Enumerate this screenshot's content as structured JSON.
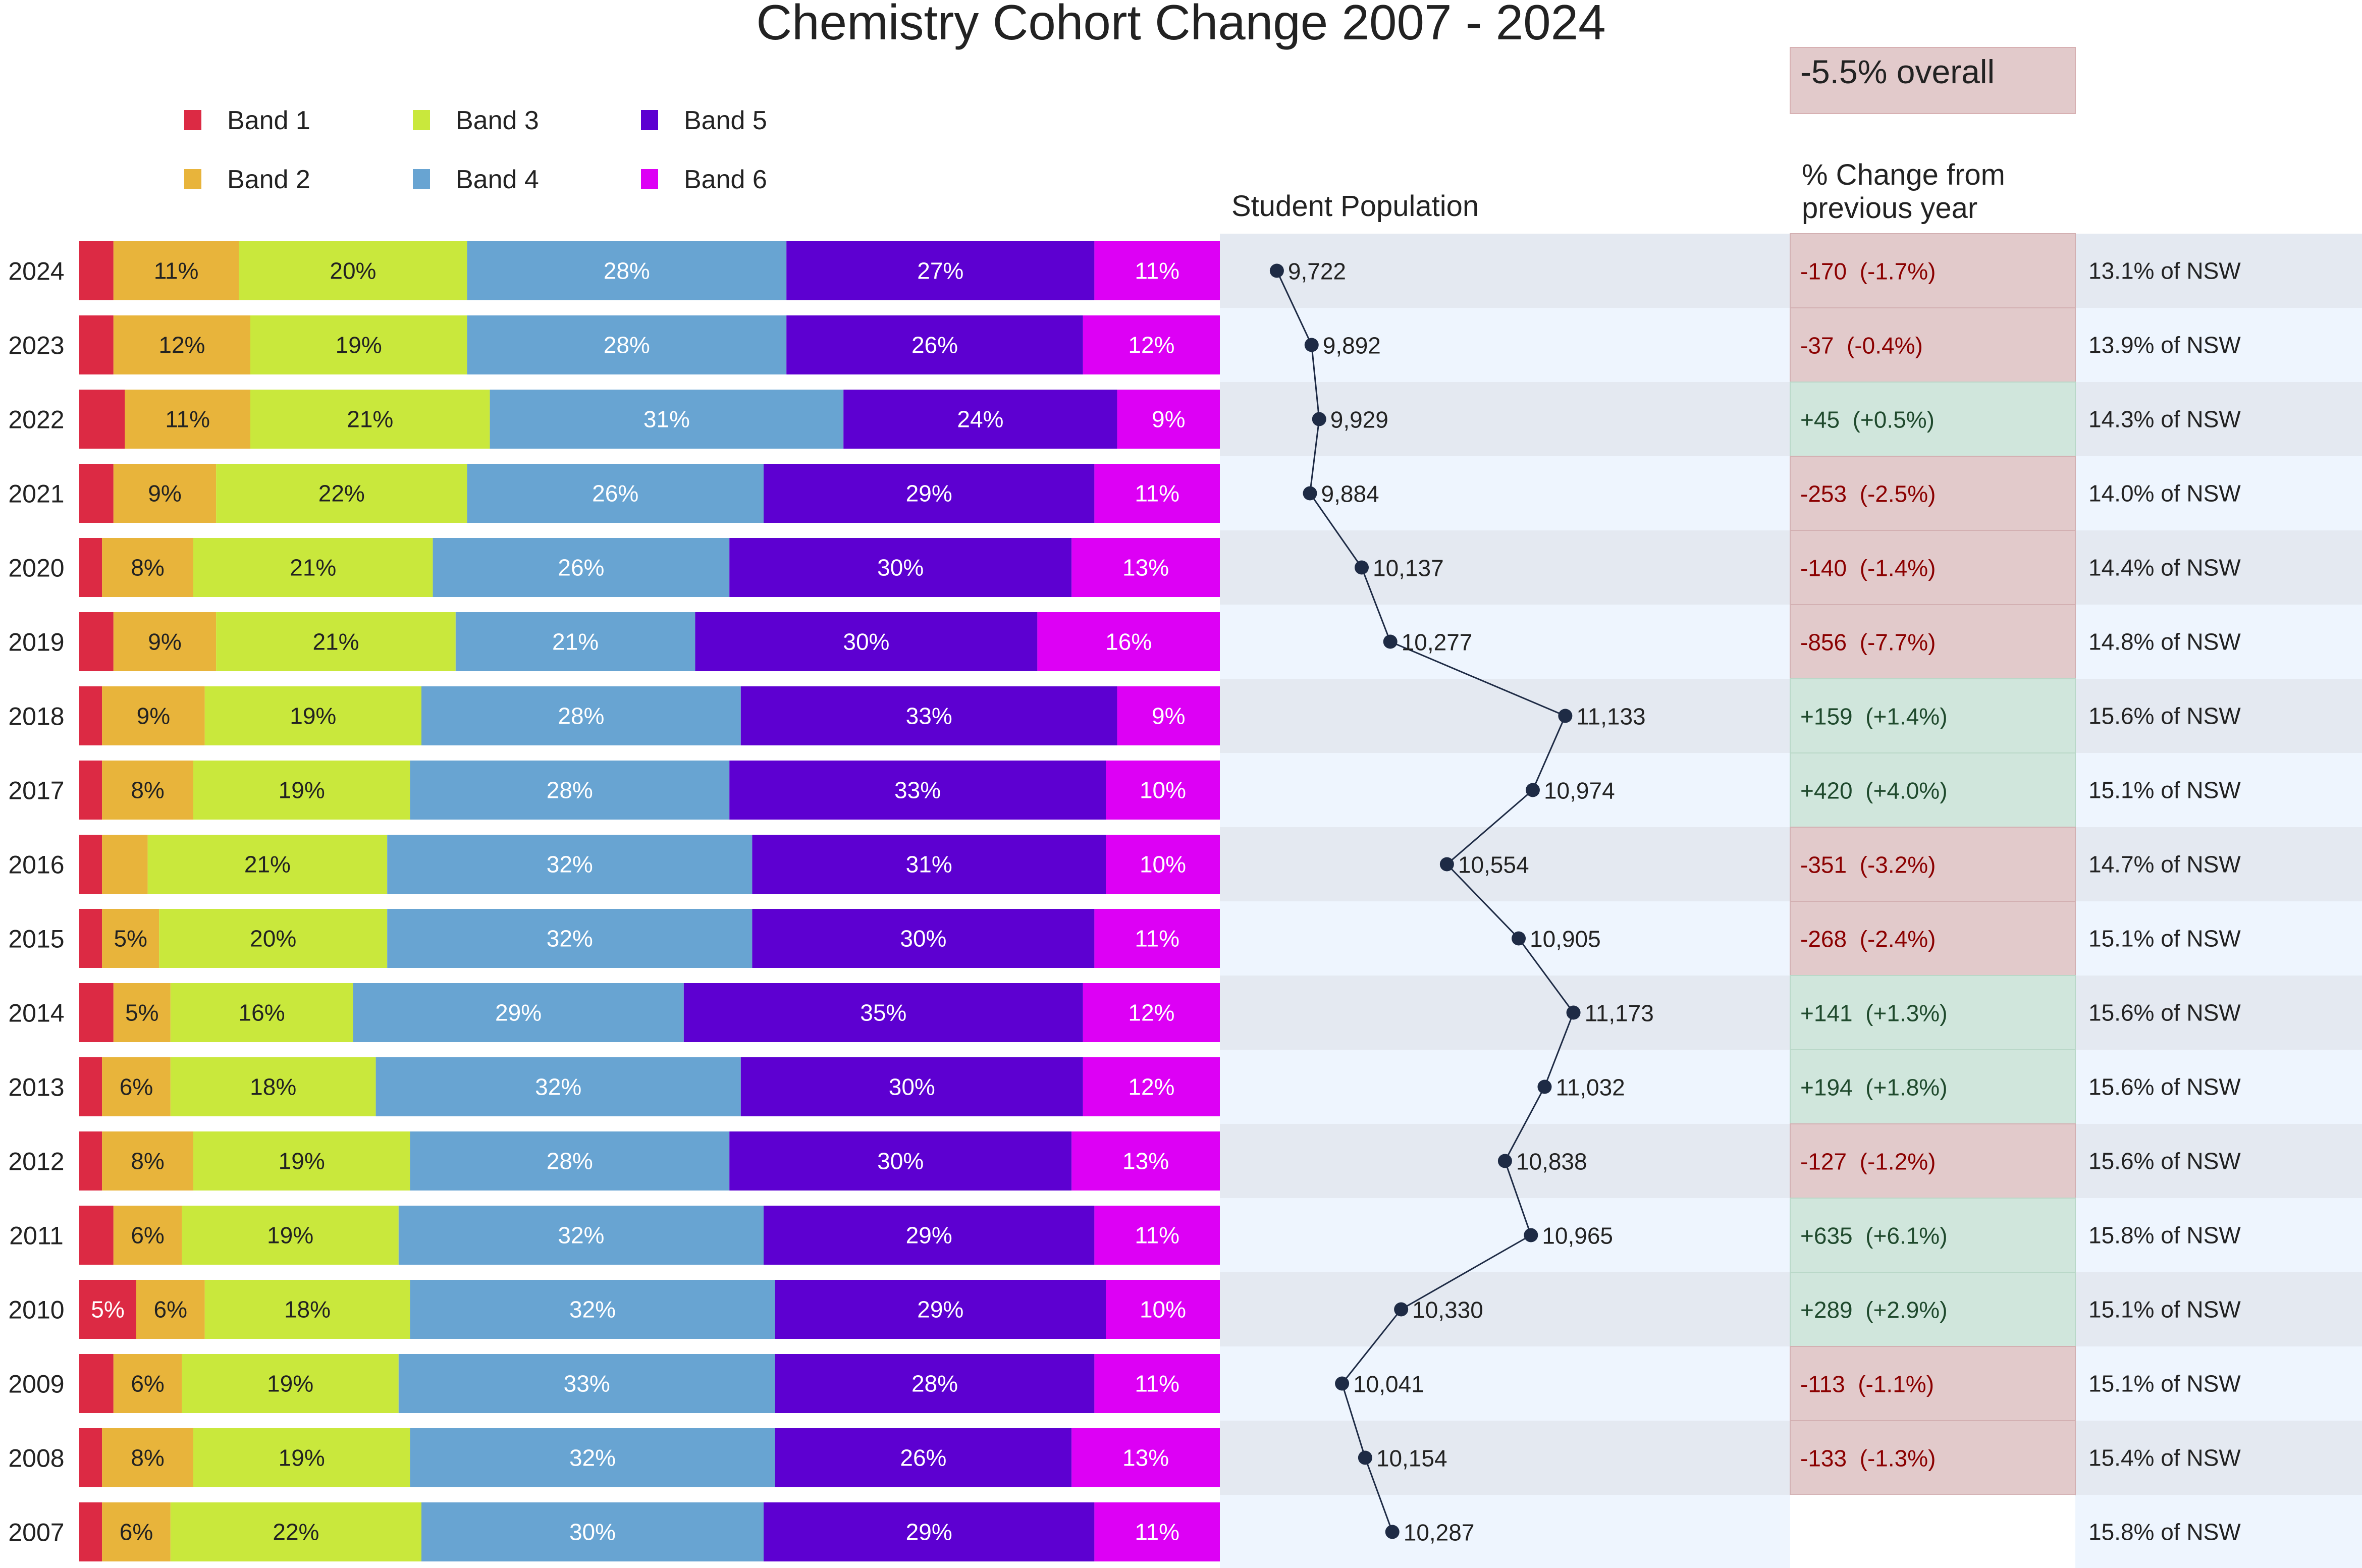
{
  "chart_data": {
    "type": "bar",
    "title": "Chemistry Cohort Change 2007 - 2024",
    "overall_label": "-5.5% overall",
    "population_header": "Student Population",
    "change_header_line1": "% Change from",
    "change_header_line2": "previous year",
    "legend": [
      "Band 1",
      "Band 2",
      "Band 3",
      "Band 4",
      "Band 5",
      "Band 6"
    ],
    "colors": {
      "band1": "#dc2a44",
      "band2": "#e8b43b",
      "band3": "#c9e83c",
      "band4": "#68a4d2",
      "band5": "#5d00d1",
      "band6": "#dd00f5",
      "row_dark": "#e4e9f1",
      "row_light": "#eef5fe",
      "neg_bg": "#e2cacb",
      "pos_bg": "#d0e6dc",
      "neg_text": "#8b0000",
      "pos_text": "#1f4a2d",
      "line": "#1e2b45"
    },
    "years": [
      "2024",
      "2023",
      "2022",
      "2021",
      "2020",
      "2019",
      "2018",
      "2017",
      "2016",
      "2015",
      "2014",
      "2013",
      "2012",
      "2011",
      "2010",
      "2009",
      "2008",
      "2007"
    ],
    "series": [
      {
        "name": "Band 1",
        "values": [
          3,
          3,
          4,
          3,
          2,
          3,
          2,
          2,
          2,
          2,
          3,
          2,
          2,
          3,
          5,
          3,
          2,
          2
        ],
        "labels": [
          "",
          "",
          "",
          "",
          "",
          "",
          "",
          "",
          "",
          "",
          "",
          "",
          "",
          "",
          "5%",
          "",
          "",
          ""
        ]
      },
      {
        "name": "Band 2",
        "values": [
          11,
          12,
          11,
          9,
          8,
          9,
          9,
          8,
          4,
          5,
          5,
          6,
          8,
          6,
          6,
          6,
          8,
          6
        ],
        "labels": [
          "11%",
          "12%",
          "11%",
          "9%",
          "8%",
          "9%",
          "9%",
          "8%",
          "",
          "5%",
          "5%",
          "6%",
          "8%",
          "6%",
          "6%",
          "6%",
          "8%",
          "6%"
        ]
      },
      {
        "name": "Band 3",
        "values": [
          20,
          19,
          21,
          22,
          21,
          21,
          19,
          19,
          21,
          20,
          16,
          18,
          19,
          19,
          18,
          19,
          19,
          22
        ],
        "labels": [
          "20%",
          "19%",
          "21%",
          "22%",
          "21%",
          "21%",
          "19%",
          "19%",
          "21%",
          "20%",
          "16%",
          "18%",
          "19%",
          "19%",
          "18%",
          "19%",
          "19%",
          "22%"
        ]
      },
      {
        "name": "Band 4",
        "values": [
          28,
          28,
          31,
          26,
          26,
          21,
          28,
          28,
          32,
          32,
          29,
          32,
          28,
          32,
          32,
          33,
          32,
          30
        ],
        "labels": [
          "28%",
          "28%",
          "31%",
          "26%",
          "26%",
          "21%",
          "28%",
          "28%",
          "32%",
          "32%",
          "29%",
          "32%",
          "28%",
          "32%",
          "32%",
          "33%",
          "32%",
          "30%"
        ]
      },
      {
        "name": "Band 5",
        "values": [
          27,
          26,
          24,
          29,
          30,
          30,
          33,
          33,
          31,
          30,
          35,
          30,
          30,
          29,
          29,
          28,
          26,
          29
        ],
        "labels": [
          "27%",
          "26%",
          "24%",
          "29%",
          "30%",
          "30%",
          "33%",
          "33%",
          "31%",
          "30%",
          "35%",
          "30%",
          "30%",
          "29%",
          "29%",
          "28%",
          "26%",
          "29%"
        ]
      },
      {
        "name": "Band 6",
        "values": [
          11,
          12,
          9,
          11,
          13,
          16,
          9,
          10,
          10,
          11,
          12,
          12,
          13,
          11,
          10,
          11,
          13,
          11
        ],
        "labels": [
          "11%",
          "12%",
          "9%",
          "11%",
          "13%",
          "16%",
          "9%",
          "10%",
          "10%",
          "11%",
          "12%",
          "12%",
          "13%",
          "11%",
          "10%",
          "11%",
          "13%",
          "11%"
        ]
      }
    ],
    "population": [
      9722,
      9892,
      9929,
      9884,
      10137,
      10277,
      11133,
      10974,
      10554,
      10905,
      11173,
      11032,
      10838,
      10965,
      10330,
      10041,
      10154,
      10287
    ],
    "population_labels": [
      "9,722",
      "9,892",
      "9,929",
      "9,884",
      "10,137",
      "10,277",
      "11,133",
      "10,974",
      "10,554",
      "10,905",
      "11,173",
      "11,032",
      "10,838",
      "10,965",
      "10,330",
      "10,041",
      "10,154",
      "10,287"
    ],
    "population_range": [
      9500,
      11500
    ],
    "change_labels": [
      "-170  (-1.7%)",
      "-37  (-0.4%)",
      "+45  (+0.5%)",
      "-253  (-2.5%)",
      "-140  (-1.4%)",
      "-856  (-7.7%)",
      "+159  (+1.4%)",
      "+420  (+4.0%)",
      "-351  (-3.2%)",
      "-268  (-2.4%)",
      "+141  (+1.3%)",
      "+194  (+1.8%)",
      "-127  (-1.2%)",
      "+635  (+6.1%)",
      "+289  (+2.9%)",
      "-113  (-1.1%)",
      "-133  (-1.3%)",
      ""
    ],
    "nsw_labels": [
      "13.1% of NSW",
      "13.9% of NSW",
      "14.3% of NSW",
      "14.0% of NSW",
      "14.4% of NSW",
      "14.8% of NSW",
      "15.6% of NSW",
      "15.1% of NSW",
      "14.7% of NSW",
      "15.1% of NSW",
      "15.6% of NSW",
      "15.6% of NSW",
      "15.6% of NSW",
      "15.8% of NSW",
      "15.1% of NSW",
      "15.1% of NSW",
      "15.4% of NSW",
      "15.8% of NSW"
    ]
  }
}
